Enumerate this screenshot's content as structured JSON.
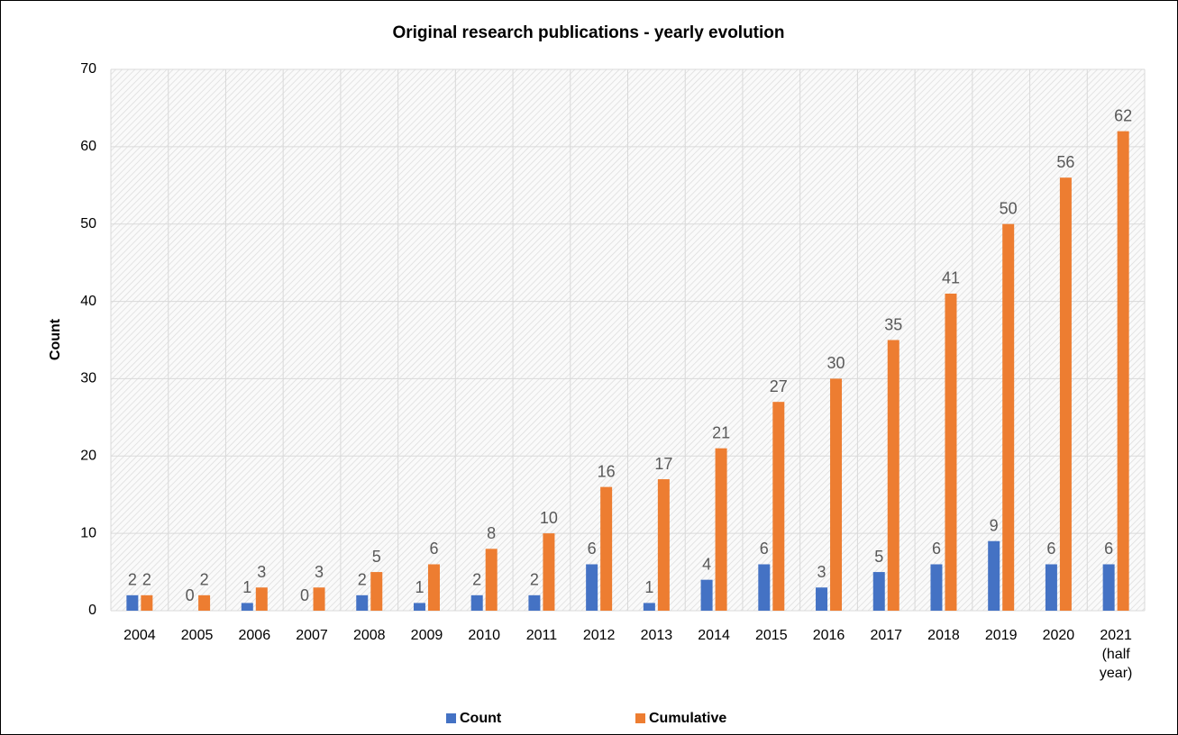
{
  "chart_data": {
    "type": "bar",
    "title": "Original research publications - yearly evolution",
    "y_label": "Count",
    "categories": [
      "2004",
      "2005",
      "2006",
      "2007",
      "2008",
      "2009",
      "2010",
      "2011",
      "2012",
      "2013",
      "2014",
      "2015",
      "2016",
      "2017",
      "2018",
      "2019",
      "2020",
      "2021 (half year)"
    ],
    "series": [
      {
        "name": "Count",
        "color": "#4472c4",
        "values": [
          2,
          0,
          1,
          0,
          2,
          1,
          2,
          2,
          6,
          1,
          4,
          6,
          3,
          5,
          6,
          9,
          6,
          6
        ]
      },
      {
        "name": "Cumulative",
        "color": "#ed7d31",
        "values": [
          2,
          2,
          3,
          3,
          5,
          6,
          8,
          10,
          16,
          17,
          21,
          27,
          30,
          35,
          41,
          50,
          56,
          62
        ]
      }
    ],
    "ylim": [
      0,
      70
    ],
    "yticks": [
      0,
      10,
      20,
      30,
      40,
      50,
      60,
      70
    ],
    "grid": true,
    "legend": "bottom"
  }
}
